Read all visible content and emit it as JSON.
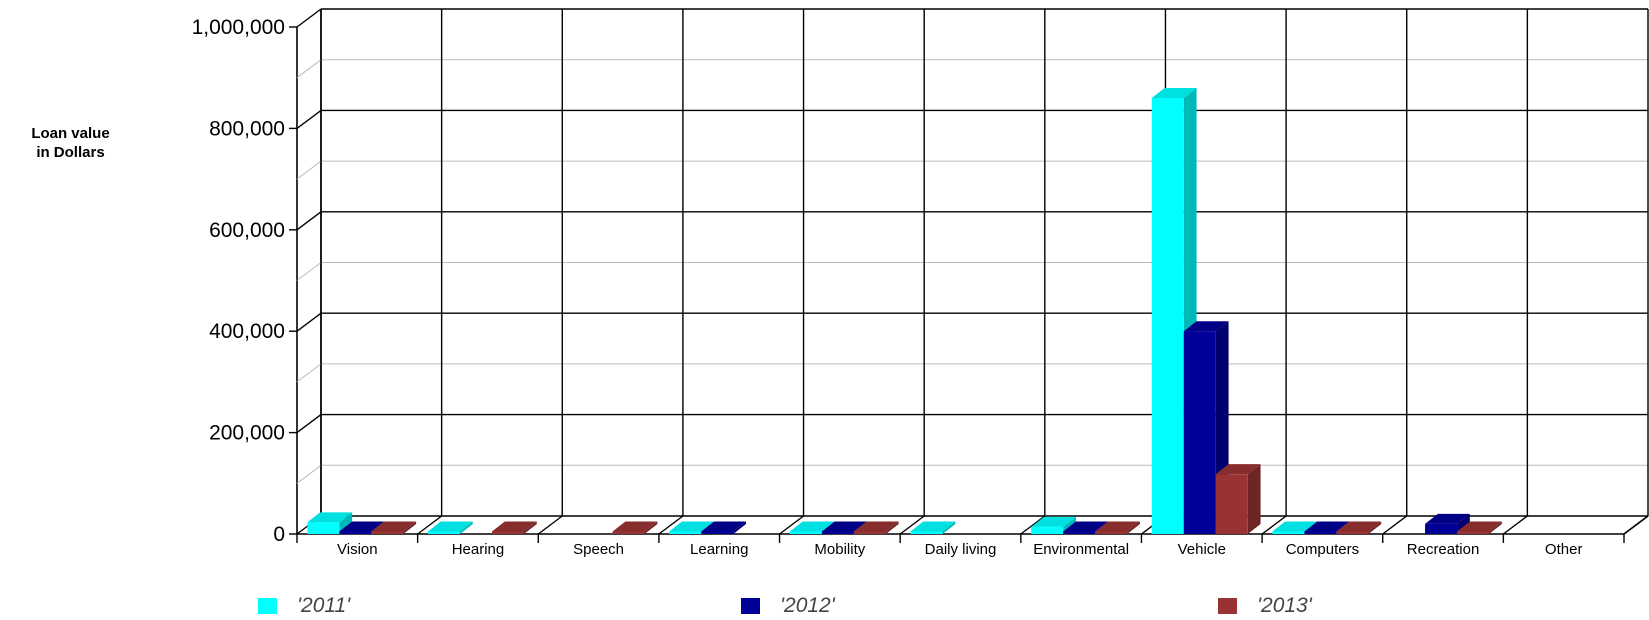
{
  "chart_data": {
    "type": "bar",
    "title": "",
    "ylabel_lines": [
      "Loan value",
      "in Dollars"
    ],
    "xlabel": "",
    "ylim": [
      0,
      1000000
    ],
    "y_ticks": [
      "0",
      "200,000",
      "400,000",
      "600,000",
      "800,000",
      "1,000,000"
    ],
    "y_tick_values": [
      0,
      200000,
      400000,
      600000,
      800000,
      1000000
    ],
    "categories": [
      "Vision",
      "Hearing",
      "Speech",
      "Learning",
      "Mobility",
      "Daily living",
      "Environmental",
      "Vehicle",
      "Computers",
      "Recreation",
      "Other"
    ],
    "series": [
      {
        "name": "'2011'",
        "color": "#00FFFF",
        "values": [
          23000,
          5000,
          0,
          5000,
          5000,
          5000,
          14000,
          860000,
          5000,
          0,
          0
        ]
      },
      {
        "name": "'2012'",
        "color": "#000099",
        "values": [
          5000,
          0,
          0,
          5000,
          5000,
          0,
          5000,
          400000,
          5000,
          20000,
          0
        ]
      },
      {
        "name": "'2013'",
        "color": "#993333",
        "values": [
          5000,
          5000,
          5000,
          0,
          5000,
          0,
          5000,
          118000,
          5000,
          5000,
          0
        ]
      }
    ],
    "grid": true,
    "legend_position": "bottom"
  }
}
